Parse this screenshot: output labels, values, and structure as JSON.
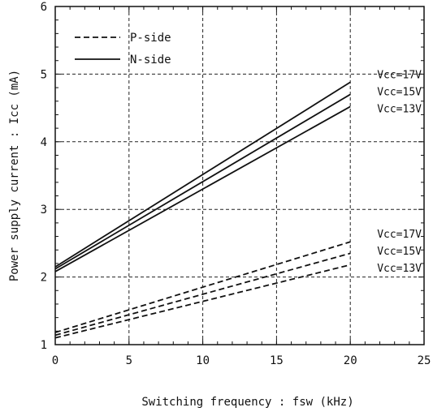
{
  "chart_data": {
    "type": "line",
    "xlabel": "Switching frequency : fsw (kHz)",
    "ylabel": "Power supply current : Icc (mA)",
    "xlim": [
      0,
      25
    ],
    "ylim": [
      1,
      6
    ],
    "xticks": [
      "0",
      "5",
      "10",
      "15",
      "20",
      "25"
    ],
    "yticks": [
      "1",
      "2",
      "3",
      "4",
      "5",
      "6"
    ],
    "grid": true,
    "legend": {
      "placement": "top-left",
      "entries": [
        {
          "label": "P-side",
          "style": "dashed"
        },
        {
          "label": "N-side",
          "style": "solid"
        }
      ]
    },
    "series": [
      {
        "group": "N-side",
        "label": "Vcc=17V",
        "style": "solid",
        "x": [
          0,
          20
        ],
        "y": [
          2.15,
          4.88
        ]
      },
      {
        "group": "N-side",
        "label": "Vcc=15V",
        "style": "solid",
        "x": [
          0,
          20
        ],
        "y": [
          2.12,
          4.7
        ]
      },
      {
        "group": "N-side",
        "label": "Vcc=13V",
        "style": "solid",
        "x": [
          0,
          20
        ],
        "y": [
          2.08,
          4.52
        ]
      },
      {
        "group": "P-side",
        "label": "Vcc=17V",
        "style": "dashed",
        "x": [
          0,
          20
        ],
        "y": [
          1.18,
          2.52
        ]
      },
      {
        "group": "P-side",
        "label": "Vcc=15V",
        "style": "dashed",
        "x": [
          0,
          20
        ],
        "y": [
          1.14,
          2.35
        ]
      },
      {
        "group": "P-side",
        "label": "Vcc=13V",
        "style": "dashed",
        "x": [
          0,
          20
        ],
        "y": [
          1.1,
          2.18
        ]
      }
    ]
  }
}
